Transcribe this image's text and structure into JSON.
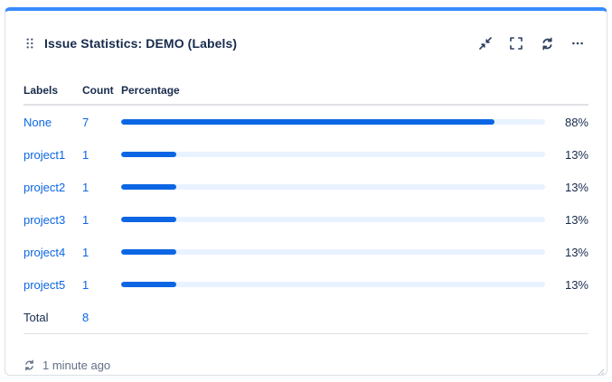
{
  "header": {
    "title": "Issue Statistics: DEMO (Labels)",
    "toolbar_icons": [
      "minimize-icon",
      "fullscreen-icon",
      "refresh-icon",
      "more-icon"
    ]
  },
  "table": {
    "columns": [
      "Labels",
      "Count",
      "Percentage"
    ],
    "rows": [
      {
        "label": "None",
        "count": "7",
        "percent": "88%",
        "value": 88
      },
      {
        "label": "project1",
        "count": "1",
        "percent": "13%",
        "value": 13
      },
      {
        "label": "project2",
        "count": "1",
        "percent": "13%",
        "value": 13
      },
      {
        "label": "project3",
        "count": "1",
        "percent": "13%",
        "value": 13
      },
      {
        "label": "project4",
        "count": "1",
        "percent": "13%",
        "value": 13
      },
      {
        "label": "project5",
        "count": "1",
        "percent": "13%",
        "value": 13
      }
    ],
    "total": {
      "label": "Total",
      "count": "8"
    }
  },
  "footer": {
    "last_refreshed": "1 minute ago"
  },
  "chart_data": {
    "type": "bar",
    "categories": [
      "None",
      "project1",
      "project2",
      "project3",
      "project4",
      "project5"
    ],
    "values": [
      88,
      13,
      13,
      13,
      13,
      13
    ],
    "counts": [
      7,
      1,
      1,
      1,
      1,
      1
    ],
    "total_count": 8,
    "title": "Issue Statistics: DEMO (Labels)",
    "xlabel": "Percentage",
    "ylabel": "Labels",
    "xlim": [
      0,
      100
    ]
  },
  "colors": {
    "accent_top": "#388BFF",
    "bar_fill": "#0C66E4",
    "bar_track": "#E9F2FF",
    "link": "#0C66E4",
    "heading": "#172B4D",
    "muted": "#626F86",
    "border": "#DCDFE4"
  }
}
